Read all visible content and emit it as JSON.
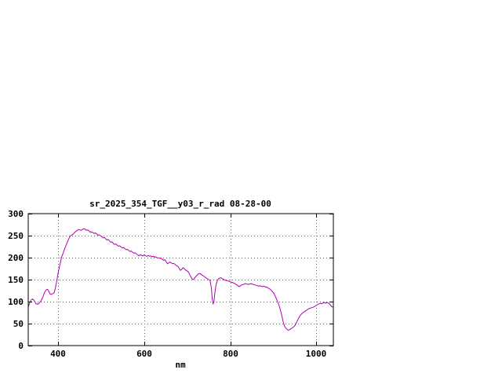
{
  "chart_data": {
    "type": "line",
    "title": "sr_2025_354_TGF__y03_r_rad 08-28-00",
    "xlabel": "nm",
    "ylabel": "",
    "xlim": [
      330,
      1040
    ],
    "ylim": [
      0,
      300
    ],
    "x_ticks": [
      400,
      600,
      800,
      1000
    ],
    "y_ticks": [
      0,
      50,
      100,
      150,
      200,
      250,
      300
    ],
    "grid": true,
    "legend": "none",
    "line_color": "#b000b0",
    "border_color": "#000000",
    "grid_color": "#606060",
    "series": [
      {
        "name": "sr_2025_354_TGF__y03_r_rad",
        "points": [
          [
            330,
            88
          ],
          [
            334,
            98
          ],
          [
            337,
            104
          ],
          [
            340,
            106
          ],
          [
            344,
            102
          ],
          [
            348,
            95
          ],
          [
            352,
            94
          ],
          [
            356,
            97
          ],
          [
            360,
            102
          ],
          [
            364,
            110
          ],
          [
            368,
            121
          ],
          [
            372,
            127
          ],
          [
            375,
            128
          ],
          [
            378,
            123
          ],
          [
            381,
            117
          ],
          [
            384,
            116
          ],
          [
            387,
            118
          ],
          [
            390,
            120
          ],
          [
            393,
            130
          ],
          [
            396,
            145
          ],
          [
            399,
            162
          ],
          [
            402,
            176
          ],
          [
            405,
            190
          ],
          [
            408,
            202
          ],
          [
            411,
            210
          ],
          [
            414,
            218
          ],
          [
            417,
            226
          ],
          [
            420,
            233
          ],
          [
            423,
            240
          ],
          [
            426,
            246
          ],
          [
            429,
            250
          ],
          [
            432,
            252
          ],
          [
            435,
            254
          ],
          [
            438,
            257
          ],
          [
            441,
            260
          ],
          [
            444,
            262
          ],
          [
            447,
            264
          ],
          [
            450,
            263
          ],
          [
            453,
            262
          ],
          [
            456,
            264
          ],
          [
            459,
            266
          ],
          [
            462,
            265
          ],
          [
            465,
            262
          ],
          [
            468,
            263
          ],
          [
            471,
            261
          ],
          [
            474,
            258
          ],
          [
            477,
            259
          ],
          [
            480,
            257
          ],
          [
            483,
            255
          ],
          [
            486,
            256
          ],
          [
            489,
            254
          ],
          [
            492,
            251
          ],
          [
            495,
            252
          ],
          [
            498,
            250
          ],
          [
            501,
            248
          ],
          [
            504,
            245
          ],
          [
            507,
            246
          ],
          [
            510,
            243
          ],
          [
            513,
            240
          ],
          [
            516,
            241
          ],
          [
            519,
            238
          ],
          [
            522,
            235
          ],
          [
            525,
            236
          ],
          [
            528,
            232
          ],
          [
            531,
            230
          ],
          [
            534,
            231
          ],
          [
            537,
            228
          ],
          [
            540,
            226
          ],
          [
            543,
            227
          ],
          [
            546,
            224
          ],
          [
            549,
            222
          ],
          [
            552,
            223
          ],
          [
            555,
            220
          ],
          [
            558,
            218
          ],
          [
            561,
            219
          ],
          [
            564,
            216
          ],
          [
            567,
            214
          ],
          [
            570,
            215
          ],
          [
            573,
            212
          ],
          [
            576,
            210
          ],
          [
            579,
            211
          ],
          [
            582,
            208
          ],
          [
            585,
            206
          ],
          [
            588,
            204
          ],
          [
            591,
            207
          ],
          [
            594,
            205
          ],
          [
            597,
            204
          ],
          [
            600,
            206
          ],
          [
            603,
            204
          ],
          [
            606,
            203
          ],
          [
            609,
            205
          ],
          [
            612,
            203
          ],
          [
            615,
            204
          ],
          [
            618,
            202
          ],
          [
            621,
            203
          ],
          [
            624,
            201
          ],
          [
            627,
            202
          ],
          [
            630,
            199
          ],
          [
            633,
            200
          ],
          [
            636,
            198
          ],
          [
            639,
            199
          ],
          [
            642,
            196
          ],
          [
            645,
            194
          ],
          [
            648,
            195
          ],
          [
            651,
            190
          ],
          [
            654,
            186
          ],
          [
            657,
            188
          ],
          [
            660,
            190
          ],
          [
            663,
            188
          ],
          [
            666,
            186
          ],
          [
            669,
            187
          ],
          [
            672,
            184
          ],
          [
            675,
            182
          ],
          [
            678,
            180
          ],
          [
            681,
            176
          ],
          [
            684,
            171
          ],
          [
            687,
            173
          ],
          [
            690,
            177
          ],
          [
            693,
            175
          ],
          [
            696,
            172
          ],
          [
            699,
            170
          ],
          [
            702,
            168
          ],
          [
            705,
            163
          ],
          [
            708,
            157
          ],
          [
            711,
            152
          ],
          [
            714,
            150
          ],
          [
            717,
            153
          ],
          [
            720,
            157
          ],
          [
            723,
            160
          ],
          [
            726,
            163
          ],
          [
            729,
            164
          ],
          [
            732,
            162
          ],
          [
            735,
            160
          ],
          [
            738,
            158
          ],
          [
            741,
            156
          ],
          [
            744,
            154
          ],
          [
            747,
            152
          ],
          [
            750,
            150
          ],
          [
            753,
            148
          ],
          [
            756,
            132
          ],
          [
            758,
            108
          ],
          [
            760,
            95
          ],
          [
            762,
            99
          ],
          [
            764,
            118
          ],
          [
            767,
            138
          ],
          [
            770,
            148
          ],
          [
            773,
            152
          ],
          [
            776,
            154
          ],
          [
            779,
            154
          ],
          [
            782,
            152
          ],
          [
            785,
            150
          ],
          [
            788,
            149
          ],
          [
            791,
            148
          ],
          [
            794,
            147
          ],
          [
            797,
            146
          ],
          [
            800,
            145
          ],
          [
            803,
            144
          ],
          [
            806,
            143
          ],
          [
            809,
            142
          ],
          [
            812,
            140
          ],
          [
            815,
            138
          ],
          [
            818,
            136
          ],
          [
            821,
            134
          ],
          [
            824,
            136
          ],
          [
            827,
            138
          ],
          [
            830,
            139
          ],
          [
            833,
            140
          ],
          [
            836,
            141
          ],
          [
            839,
            140
          ],
          [
            842,
            139
          ],
          [
            845,
            140
          ],
          [
            848,
            141
          ],
          [
            851,
            140
          ],
          [
            854,
            139
          ],
          [
            857,
            138
          ],
          [
            860,
            137
          ],
          [
            863,
            136
          ],
          [
            866,
            135
          ],
          [
            869,
            136
          ],
          [
            872,
            135
          ],
          [
            875,
            134
          ],
          [
            878,
            135
          ],
          [
            881,
            134
          ],
          [
            884,
            133
          ],
          [
            887,
            132
          ],
          [
            890,
            130
          ],
          [
            893,
            128
          ],
          [
            896,
            125
          ],
          [
            899,
            122
          ],
          [
            902,
            118
          ],
          [
            905,
            112
          ],
          [
            908,
            105
          ],
          [
            911,
            98
          ],
          [
            914,
            90
          ],
          [
            917,
            80
          ],
          [
            920,
            68
          ],
          [
            923,
            55
          ],
          [
            926,
            45
          ],
          [
            929,
            40
          ],
          [
            932,
            37
          ],
          [
            935,
            35
          ],
          [
            938,
            36
          ],
          [
            941,
            38
          ],
          [
            944,
            40
          ],
          [
            947,
            42
          ],
          [
            950,
            45
          ],
          [
            953,
            50
          ],
          [
            956,
            56
          ],
          [
            959,
            62
          ],
          [
            962,
            67
          ],
          [
            965,
            71
          ],
          [
            968,
            74
          ],
          [
            971,
            76
          ],
          [
            974,
            78
          ],
          [
            977,
            80
          ],
          [
            980,
            82
          ],
          [
            983,
            84
          ],
          [
            986,
            85
          ],
          [
            989,
            86
          ],
          [
            992,
            87
          ],
          [
            995,
            88
          ],
          [
            998,
            90
          ],
          [
            1001,
            92
          ],
          [
            1004,
            94
          ],
          [
            1007,
            95
          ],
          [
            1010,
            96
          ],
          [
            1013,
            95
          ],
          [
            1016,
            97
          ],
          [
            1019,
            98
          ],
          [
            1022,
            96
          ],
          [
            1025,
            98
          ],
          [
            1028,
            97
          ],
          [
            1031,
            95
          ],
          [
            1034,
            91
          ],
          [
            1037,
            88
          ],
          [
            1040,
            88
          ]
        ]
      }
    ]
  }
}
